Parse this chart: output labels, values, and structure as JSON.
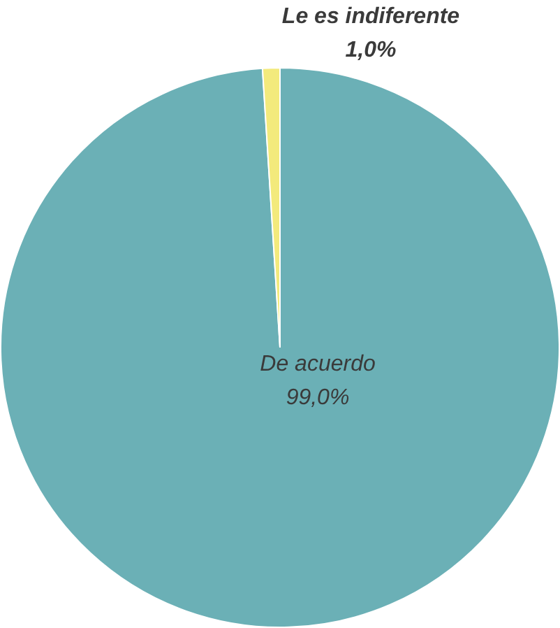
{
  "chart_data": {
    "type": "pie",
    "categories": [
      "De acuerdo",
      "Le es indiferente"
    ],
    "values": [
      99,
      1
    ],
    "colors": [
      "#6bb0b6",
      "#f3ea7c"
    ],
    "value_labels": [
      "99,0%",
      "1,0%"
    ],
    "legend": false
  }
}
